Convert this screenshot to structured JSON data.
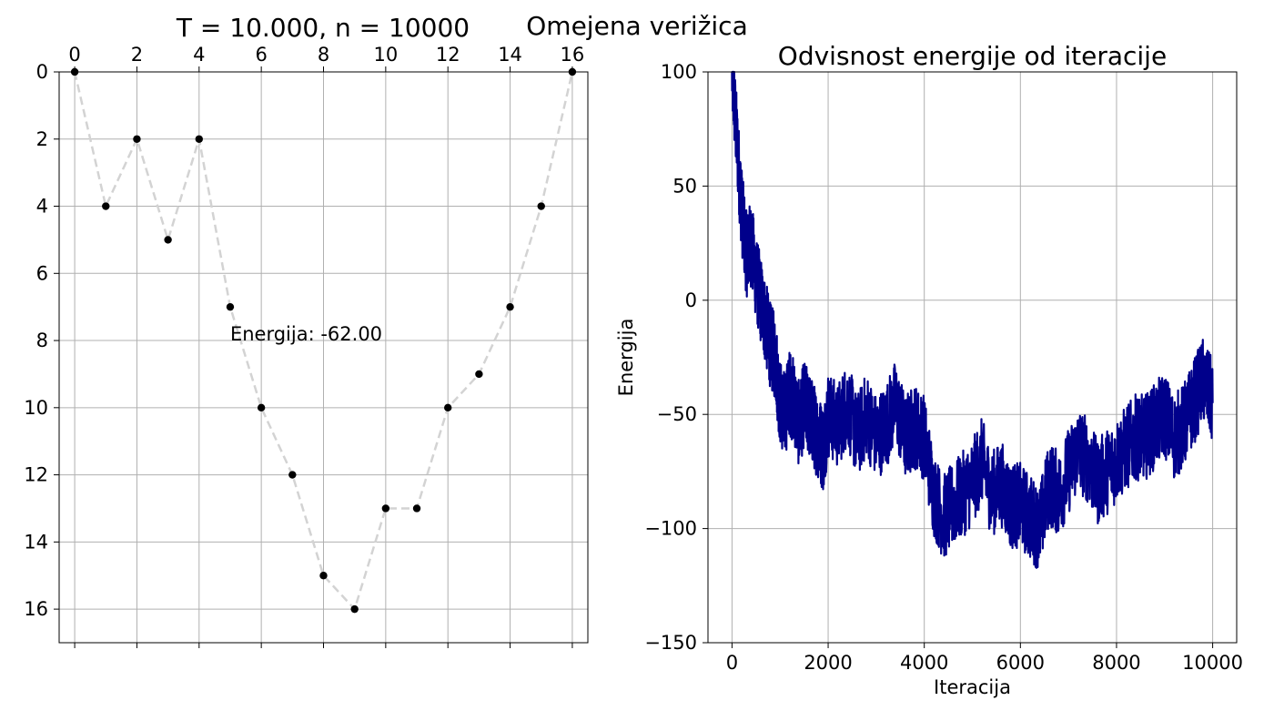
{
  "figure": {
    "suptitle": "T = 10.000, n = 10000",
    "center_title": "Omejena verižica"
  },
  "colors": {
    "chain_line": "#d3d3d3",
    "chain_points": "#000000",
    "energy_line": "#00008b",
    "grid": "#b0b0b0"
  },
  "chart_data": [
    {
      "type": "line",
      "title": "",
      "xlabel": "",
      "ylabel": "",
      "xlim": [
        -0.5,
        16.5
      ],
      "ylim": [
        17,
        0
      ],
      "x_ticks": [
        0,
        2,
        4,
        6,
        8,
        10,
        12,
        14,
        16
      ],
      "x_tick_position": "top",
      "y_ticks": [
        0,
        2,
        4,
        6,
        8,
        10,
        12,
        14,
        16
      ],
      "y_inverted": true,
      "grid": true,
      "line_style": "dashed",
      "marker": "circle",
      "x": [
        0,
        1,
        2,
        3,
        4,
        5,
        6,
        7,
        8,
        9,
        10,
        11,
        12,
        13,
        14,
        15,
        16
      ],
      "y": [
        0,
        4,
        2,
        5,
        2,
        7,
        10,
        12,
        15,
        16,
        13,
        13,
        10,
        9,
        7,
        4,
        0
      ],
      "annotation": {
        "text": "Energija: -62.00",
        "x": 5,
        "y": 8
      }
    },
    {
      "type": "line",
      "title": "Odvisnost energije od iteracije",
      "xlabel": "Iteracija",
      "ylabel": "Energija",
      "xlim": [
        -500,
        10500
      ],
      "ylim": [
        -150,
        100
      ],
      "x_ticks": [
        0,
        2000,
        4000,
        6000,
        8000,
        10000
      ],
      "y_ticks": [
        -150,
        -100,
        -50,
        0,
        50,
        100
      ],
      "grid": true,
      "series": [
        {
          "x": [
            0,
            100,
            200,
            300,
            400,
            500,
            600,
            700,
            800,
            900,
            1000,
            1100,
            1200,
            1300,
            1400,
            1500,
            1600,
            1700,
            1800,
            1900,
            2000,
            2200,
            2400,
            2600,
            2800,
            3000,
            3200,
            3400,
            3600,
            3800,
            4000,
            4200,
            4400,
            4600,
            4800,
            5000,
            5200,
            5400,
            5600,
            5800,
            6000,
            6200,
            6400,
            6600,
            6800,
            7000,
            7200,
            7400,
            7600,
            7800,
            8000,
            8200,
            8400,
            8600,
            8800,
            9000,
            9200,
            9400,
            9600,
            9800,
            10000
          ],
          "values": [
            100,
            70,
            40,
            20,
            25,
            10,
            0,
            -10,
            -20,
            -25,
            -45,
            -50,
            -40,
            -45,
            -55,
            -45,
            -50,
            -55,
            -60,
            -65,
            -50,
            -55,
            -45,
            -60,
            -50,
            -60,
            -55,
            -45,
            -60,
            -55,
            -60,
            -85,
            -95,
            -90,
            -85,
            -80,
            -70,
            -85,
            -80,
            -90,
            -90,
            -95,
            -100,
            -80,
            -85,
            -75,
            -65,
            -70,
            -80,
            -75,
            -70,
            -65,
            -60,
            -60,
            -55,
            -50,
            -60,
            -55,
            -45,
            -35,
            -45
          ]
        }
      ]
    }
  ]
}
